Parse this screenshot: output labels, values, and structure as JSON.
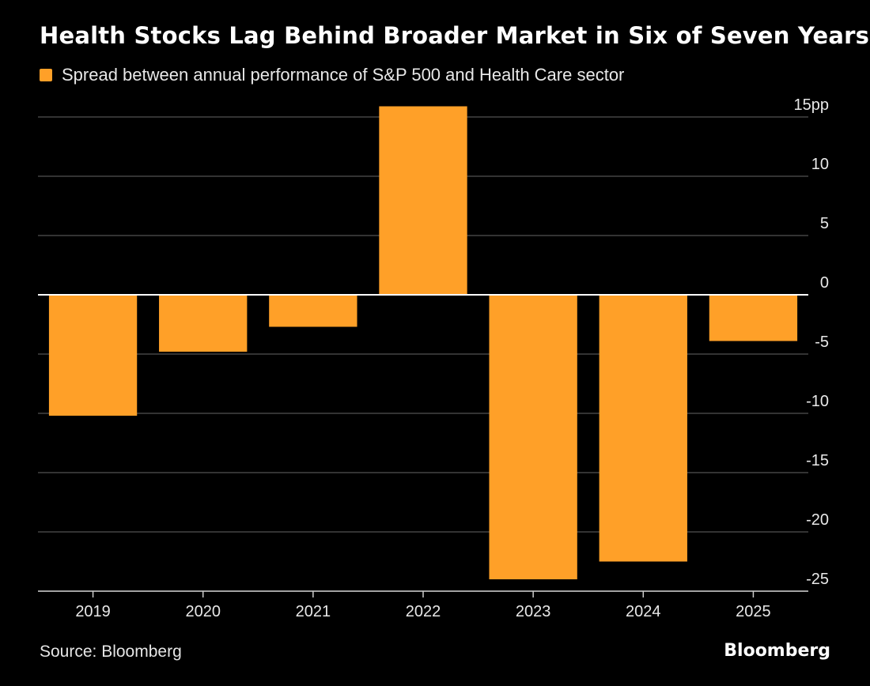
{
  "title": "Health Stocks Lag Behind Broader Market in Six of Seven Years",
  "legend": {
    "label": "Spread between annual performance of S&P 500 and Health Care sector",
    "color": "#ffa028"
  },
  "source": "Source: Bloomberg",
  "brand": "Bloomberg",
  "colors": {
    "background": "#000000",
    "bar": "#ffa028",
    "grid": "#444444",
    "text": "#ffffff"
  },
  "chart_data": {
    "type": "bar",
    "categories": [
      "2019",
      "2020",
      "2021",
      "2022",
      "2023",
      "2024",
      "2025"
    ],
    "values": [
      -10.2,
      -4.8,
      -2.7,
      15.9,
      -24.0,
      -22.5,
      -3.9
    ],
    "ylim": [
      -25,
      15
    ],
    "yticks": [
      15,
      10,
      5,
      0,
      -5,
      -10,
      -15,
      -20,
      -25
    ],
    "ytick_labels": [
      "15pp",
      "10",
      "5",
      "0",
      "-5",
      "-10",
      "-15",
      "-20",
      "-25"
    ],
    "grid": true,
    "yaxis_position": "right",
    "legend_position": "top-left"
  }
}
